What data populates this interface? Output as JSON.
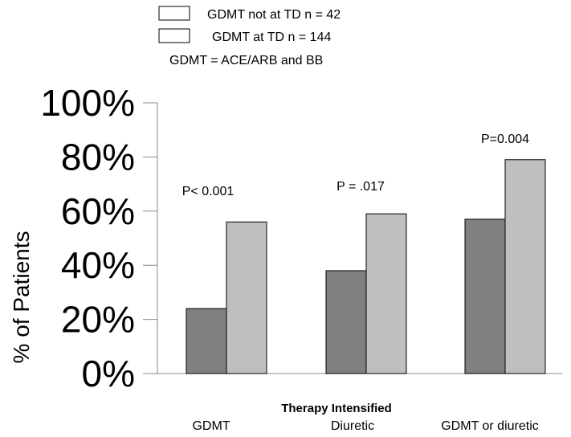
{
  "legend": {
    "entries": [
      "GDMT not at TD  n = 42",
      "GDMT at TD  n = 144"
    ],
    "note": "GDMT = ACE/ARB and BB"
  },
  "chart_data": {
    "type": "bar",
    "categories": [
      "GDMT",
      "Diuretic",
      "GDMT or diuretic"
    ],
    "series": [
      {
        "name": "GDMT not at TD  n = 42",
        "values": [
          24,
          38,
          57
        ],
        "color": "#808080"
      },
      {
        "name": "GDMT at TD  n = 144",
        "values": [
          56,
          59,
          79
        ],
        "color": "#bfbfbf"
      }
    ],
    "annotations": [
      "P< 0.001",
      "P = .017",
      "P=0.004"
    ],
    "xlabel": "Therapy Intensified",
    "ylabel": "% of Patients",
    "ylim": [
      0,
      100
    ],
    "yticks": [
      "0%",
      "20%",
      "40%",
      "60%",
      "80%",
      "100%"
    ],
    "grid": false,
    "legend_position": "top"
  }
}
